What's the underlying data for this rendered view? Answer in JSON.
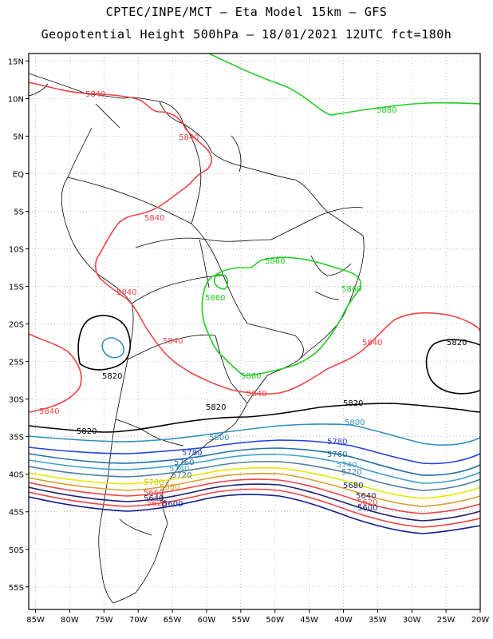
{
  "header": {
    "line1": "CPTEC/INPE/MCT –  Eta Model 15km – GFS",
    "line2": "Geopotential Height 500hPa – 18/01/2021 12UTC fct=180h"
  },
  "axes": {
    "lat_labels": [
      "15N",
      "10N",
      "5N",
      "EQ",
      "5S",
      "10S",
      "15S",
      "20S",
      "25S",
      "30S",
      "35S",
      "40S",
      "45S",
      "50S",
      "55S"
    ],
    "lat_values": [
      15,
      10,
      5,
      0,
      -5,
      -10,
      -15,
      -20,
      -25,
      -30,
      -35,
      -40,
      -45,
      -50,
      -55
    ],
    "lon_labels": [
      "85W",
      "80W",
      "75W",
      "70W",
      "65W",
      "60W",
      "55W",
      "50W",
      "45W",
      "40W",
      "35W",
      "30W",
      "25W",
      "20W"
    ],
    "lon_values": [
      -85,
      -80,
      -75,
      -70,
      -65,
      -60,
      -55,
      -50,
      -45,
      -40,
      -35,
      -30,
      -25,
      -20
    ],
    "lon_range": [
      -86,
      -20
    ],
    "lat_range": [
      -58,
      16
    ],
    "grid": "dotted"
  },
  "contours": [
    {
      "level": "5880",
      "color": "#22cc22"
    },
    {
      "level": "5860",
      "color": "#22cc22"
    },
    {
      "level": "5840",
      "color": "#ee4444"
    },
    {
      "level": "5820",
      "color": "#000000"
    },
    {
      "level": "5800",
      "color": "#2f8fbf"
    },
    {
      "level": "5780",
      "color": "#1f3fdf"
    },
    {
      "level": "5760",
      "color": "#1f6fa8"
    },
    {
      "level": "5740",
      "color": "#3f9fcf"
    },
    {
      "level": "5720",
      "color": "#4f7f9f"
    },
    {
      "level": "5700",
      "color": "#e8e800"
    },
    {
      "level": "5680",
      "color": "#d8a030"
    },
    {
      "level": "5660",
      "color": "#ee4444"
    },
    {
      "level": "5640",
      "color": "#1f1f6f"
    },
    {
      "level": "5620",
      "color": "#ee4444"
    },
    {
      "level": "5600",
      "color": "#0f1f8f"
    }
  ],
  "labels": {
    "l5880": "5880",
    "l5860": "5860",
    "l5840": "5840",
    "l5820": "5820",
    "l5800": "5800",
    "l5780": "5780",
    "l5760": "5760",
    "l5740": "5740",
    "l5720": "5720",
    "l5700": "5700",
    "l5680": "5680",
    "l5660": "5660",
    "l5640": "5640",
    "l5620": "5620",
    "l5600": "5600"
  }
}
